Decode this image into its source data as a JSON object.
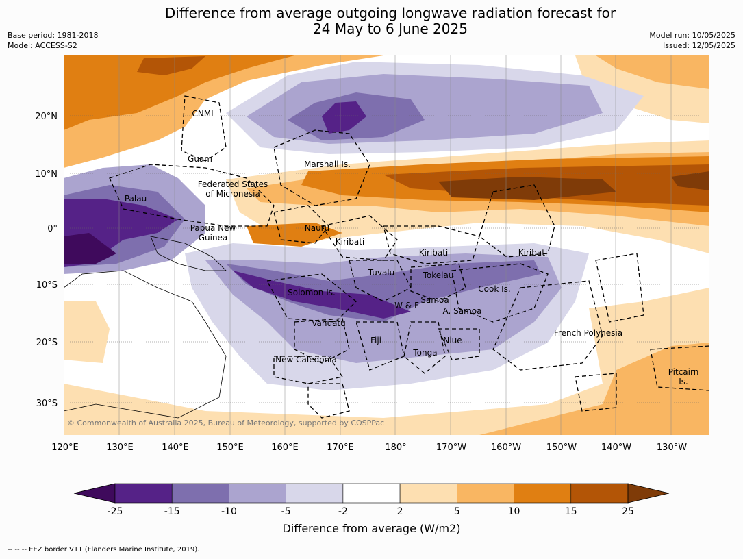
{
  "title": {
    "line1": "Difference from average outgoing longwave radiation forecast for",
    "line2": "24 May to 6 June 2025"
  },
  "meta": {
    "base_period": "Base period: 1981-2018",
    "model": "Model: ACCESS-S2",
    "model_run": "Model run: 10/05/2025",
    "issued": "Issued: 12/05/2025"
  },
  "map": {
    "lon_labels": [
      "120°E",
      "130°E",
      "140°E",
      "150°E",
      "160°E",
      "170°E",
      "180°",
      "170°W",
      "160°W",
      "150°W",
      "140°W",
      "130°W"
    ],
    "lat_labels": [
      "20°N",
      "10°N",
      "0°",
      "10°S",
      "20°S",
      "30°S"
    ],
    "copyright": "© Commonwealth of Australia 2025, Bureau of Meteorology, supported by COSPPac",
    "regions": [
      "CNMI",
      "Guam",
      "Marshall Is.",
      "Federated States",
      "of Micronesia",
      "Palau",
      "Papua New",
      "Guinea",
      "Nauru",
      "Kiribati",
      "Kiribati",
      "Kiribati",
      "Tuvalu",
      "Tokelau",
      "Solomon Is.",
      "W & F",
      "Samoa",
      "A. Samoa",
      "Cook Is.",
      "Vanuatu",
      "Fiji",
      "Niue",
      "Tonga",
      "New Caledonia",
      "French Polynesia",
      "Pitcairn",
      "Is."
    ]
  },
  "colorbar": {
    "ticks": [
      "-25",
      "-15",
      "-10",
      "-5",
      "-2",
      "2",
      "5",
      "10",
      "15",
      "25"
    ],
    "colors": [
      "#3f0a5c",
      "#552287",
      "#7e6fae",
      "#aba4cf",
      "#d8d7ea",
      "#ffffff",
      "#fddfb1",
      "#f9b662",
      "#e07f12",
      "#b35506",
      "#7f3b08"
    ],
    "label": "Difference from average (W/m2)"
  },
  "footer": "--  --  -- EEZ border V11 (Flanders Marine Institute, 2019)."
}
